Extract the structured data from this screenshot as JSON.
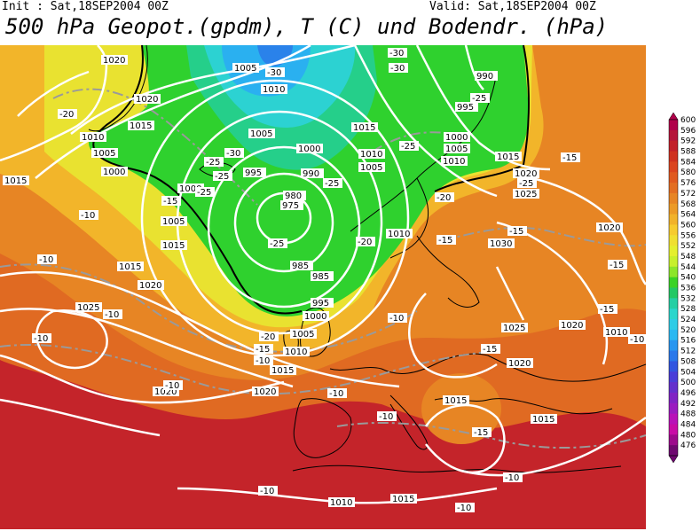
{
  "header": {
    "init": "Init : Sat,18SEP2004 00Z",
    "valid": "Valid: Sat,18SEP2004 00Z",
    "title": "500 hPa Geopot.(gpdm), T (C) und Bodendr. (hPa)"
  },
  "colorbar": {
    "levels": [
      "600",
      "596",
      "592",
      "588",
      "584",
      "580",
      "576",
      "572",
      "568",
      "564",
      "560",
      "556",
      "552",
      "548",
      "544",
      "540",
      "536",
      "532",
      "528",
      "524",
      "520",
      "516",
      "512",
      "508",
      "504",
      "500",
      "496",
      "492",
      "488",
      "484",
      "480",
      "476"
    ],
    "colors": [
      "#b0004a",
      "#b5163a",
      "#c2202a",
      "#cf3220",
      "#db4520",
      "#e05a20",
      "#e36e22",
      "#e78524",
      "#ec9a26",
      "#f1b22a",
      "#f6cb2e",
      "#f0df30",
      "#e4ef2e",
      "#c7f02c",
      "#8ce62a",
      "#3ad226",
      "#22c864",
      "#24cfa4",
      "#2ad6cc",
      "#2ecce6",
      "#2ab8f2",
      "#2896f0",
      "#2a78ea",
      "#3256e0",
      "#4a3ed8",
      "#6430cc",
      "#8024c4",
      "#9a1cc0",
      "#b812b8",
      "#c80ca6",
      "#9c0a8c",
      "#6e0870"
    ]
  },
  "map": {
    "isobar_labels": [
      "1020",
      "1020",
      "1015",
      "1010",
      "1005",
      "1000",
      "1015",
      "1005",
      "1000",
      "1005",
      "1010",
      "1015",
      "1020",
      "1025",
      "1015",
      "995",
      "990",
      "980",
      "975",
      "985",
      "985",
      "995",
      "1000",
      "1005",
      "1010",
      "1015",
      "1020",
      "1000",
      "1005",
      "1010",
      "1015",
      "1020",
      "1025",
      "1030",
      "1025",
      "1020",
      "1015",
      "1020",
      "1015",
      "1010",
      "1020",
      "1020",
      "1015",
      "990",
      "995",
      "1000",
      "1010",
      "1015",
      "1005",
      "1010",
      "1005",
      "1010"
    ],
    "temp_labels": [
      "-20",
      "-15",
      "-10",
      "-10",
      "-10",
      "-10",
      "-10",
      "-25",
      "-30",
      "-30",
      "-25",
      "-25",
      "-25",
      "-25",
      "-20",
      "-20",
      "-15",
      "-15",
      "-10",
      "-10",
      "-10",
      "-10",
      "-15",
      "-15",
      "-15",
      "-15",
      "-15",
      "-10",
      "-10",
      "-10",
      "-10",
      "-15",
      "-30",
      "-30",
      "-25",
      "-25",
      "-20",
      "-25"
    ],
    "colors": {
      "land_lines": "#000000",
      "isobars": "#ffffff",
      "isotherms": "#9a9a9a",
      "trough_line": "#000000"
    }
  }
}
